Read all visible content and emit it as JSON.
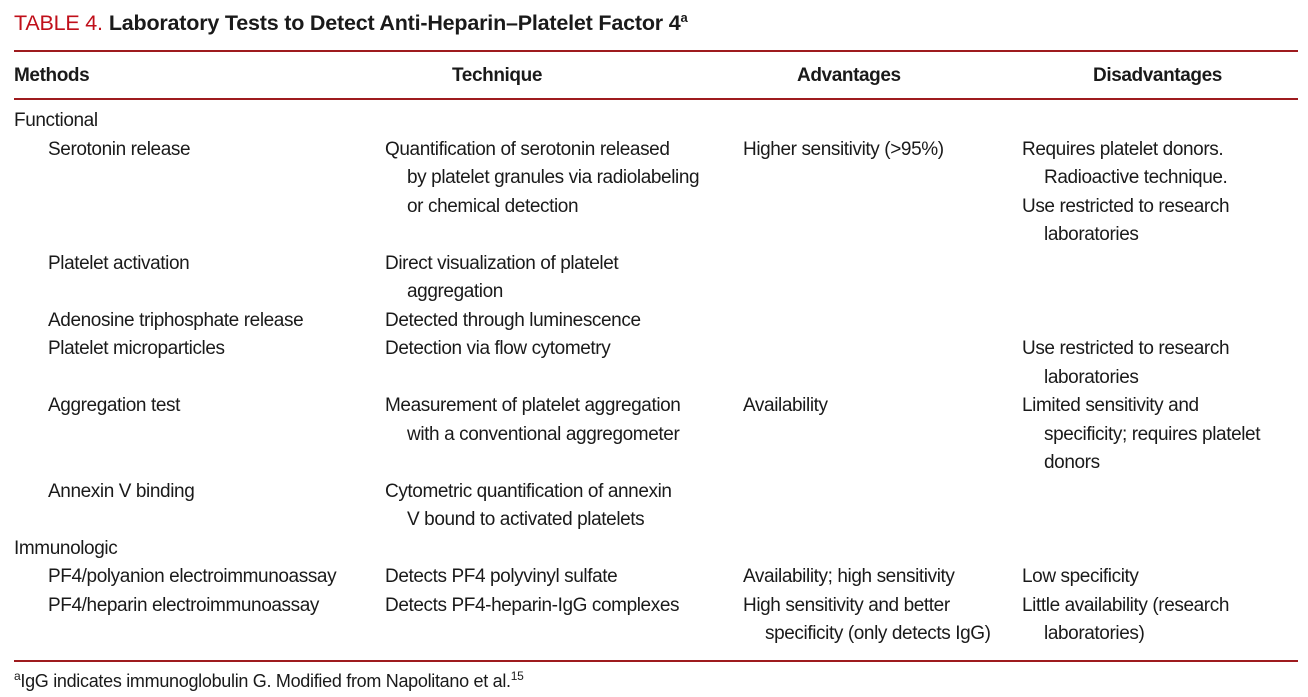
{
  "colors": {
    "accent_red": "#c00f1a",
    "rule_red": "#9e1b1e",
    "text": "#1a1a1a"
  },
  "title": {
    "label": "TABLE 4.",
    "text": "Laboratory Tests to Detect Anti-Heparin–Platelet Factor 4",
    "footnote_marker": "a"
  },
  "table": {
    "columns": [
      "Methods",
      "Technique",
      "Advantages",
      "Disadvantages"
    ],
    "sections": [
      {
        "name": "Functional",
        "rows": [
          {
            "method": "Serotonin release",
            "technique": "Quantification of serotonin released\nby platelet granules via radiolabeling\nor chemical detection",
            "advantages": "Higher sensitivity (>95%)",
            "disadvantages": [
              "Requires platelet donors.\nRadioactive technique.",
              "Use restricted to research\nlaboratories"
            ]
          },
          {
            "method": "Platelet activation",
            "technique": "Direct visualization of platelet\naggregation",
            "advantages": "",
            "disadvantages": []
          },
          {
            "method": "Adenosine triphosphate release",
            "technique": "Detected through luminescence",
            "advantages": "",
            "disadvantages": []
          },
          {
            "method": "Platelet microparticles",
            "technique": "Detection via flow cytometry",
            "advantages": "",
            "disadvantages": [
              "Use restricted to research\nlaboratories"
            ]
          },
          {
            "method": "Aggregation test",
            "technique": "Measurement of platelet aggregation\nwith a conventional aggregometer",
            "advantages": "Availability",
            "disadvantages": [
              "Limited sensitivity and\nspecificity; requires platelet\ndonors"
            ]
          },
          {
            "method": "Annexin V binding",
            "technique": "Cytometric quantification of annexin\nV bound to activated platelets",
            "advantages": "",
            "disadvantages": []
          }
        ]
      },
      {
        "name": "Immunologic",
        "rows": [
          {
            "method": "PF4/polyanion electroimmunoassay",
            "technique": "Detects PF4 polyvinyl sulfate",
            "advantages": "Availability; high sensitivity",
            "disadvantages": [
              "Low specificity"
            ]
          },
          {
            "method": "PF4/heparin electroimmunoassay",
            "technique": "Detects PF4-heparin-IgG complexes",
            "advantages": "High sensitivity and better\nspecificity (only detects IgG)",
            "disadvantages": [
              "Little availability (research\nlaboratories)"
            ]
          }
        ]
      }
    ]
  },
  "footnote": {
    "marker": "a",
    "text": "IgG indicates immunoglobulin G. Modified from Napolitano et al.",
    "reference": "15"
  }
}
